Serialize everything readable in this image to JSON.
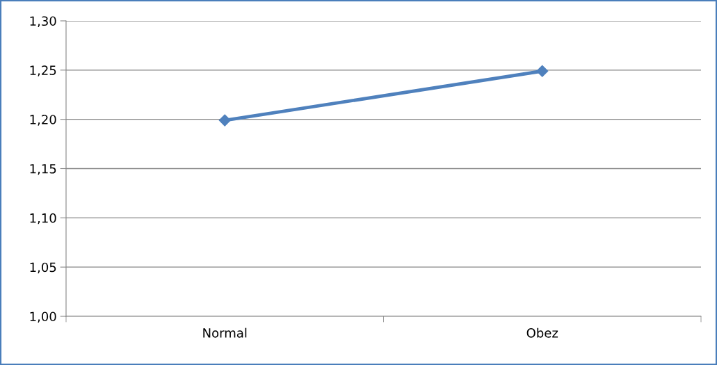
{
  "chart_data": {
    "type": "line",
    "categories": [
      "Normal",
      "Obez"
    ],
    "series": [
      {
        "color": "#4f81bd",
        "values": [
          1.199,
          1.249
        ]
      }
    ],
    "ylim": [
      1.0,
      1.3
    ],
    "yticks": [
      {
        "value": 1.0,
        "label": "1,00"
      },
      {
        "value": 1.05,
        "label": "1,05"
      },
      {
        "value": 1.1,
        "label": "1,10"
      },
      {
        "value": 1.15,
        "label": "1,15"
      },
      {
        "value": 1.2,
        "label": "1,20"
      },
      {
        "value": 1.25,
        "label": "1,25"
      },
      {
        "value": 1.3,
        "label": "1,30"
      }
    ],
    "grid": "y",
    "marker": "diamond",
    "line_style": "solid",
    "legend": false
  }
}
